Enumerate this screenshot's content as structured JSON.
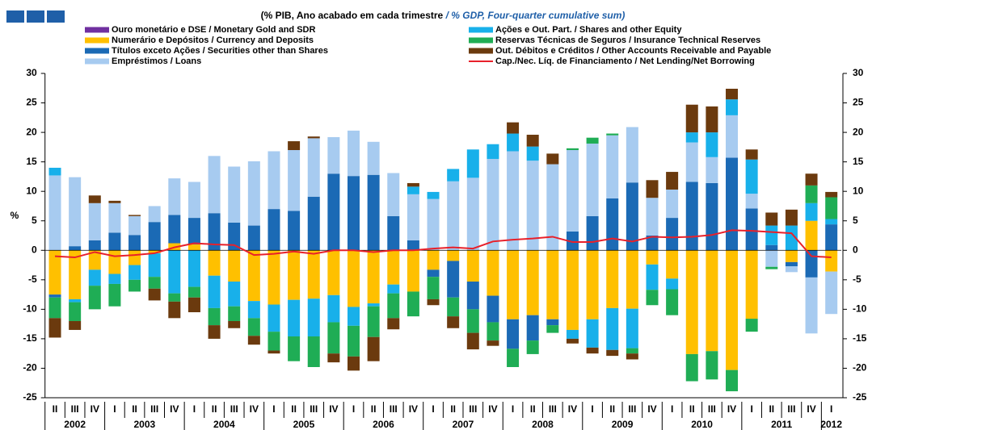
{
  "chart_data": {
    "type": "bar",
    "stacked": true,
    "subtitle_pt": "(% PIB, Ano acabado em cada trimestre ",
    "subtitle_en": "/ % GDP, Four-quarter cumulative sum)",
    "y_label": "%",
    "year_groups": [
      {
        "label": "2002",
        "quarters": [
          "II",
          "III",
          "IV"
        ]
      },
      {
        "label": "2003",
        "quarters": [
          "I",
          "II",
          "III",
          "IV"
        ]
      },
      {
        "label": "2004",
        "quarters": [
          "I",
          "II",
          "III",
          "IV"
        ]
      },
      {
        "label": "2005",
        "quarters": [
          "I",
          "II",
          "III",
          "IV"
        ]
      },
      {
        "label": "2006",
        "quarters": [
          "I",
          "II",
          "III",
          "IV"
        ]
      },
      {
        "label": "2007",
        "quarters": [
          "I",
          "II",
          "III",
          "IV"
        ]
      },
      {
        "label": "2008",
        "quarters": [
          "I",
          "II",
          "III",
          "IV"
        ]
      },
      {
        "label": "2009",
        "quarters": [
          "I",
          "II",
          "III",
          "IV"
        ]
      },
      {
        "label": "2010",
        "quarters": [
          "I",
          "II",
          "III",
          "IV"
        ]
      },
      {
        "label": "2011",
        "quarters": [
          "I",
          "II",
          "III",
          "IV"
        ]
      },
      {
        "label": "2012",
        "quarters": [
          "I"
        ]
      }
    ],
    "ylim": [
      -25,
      30
    ],
    "yticks": [
      -25,
      -20,
      -15,
      -10,
      -5,
      0,
      5,
      10,
      15,
      20,
      25,
      30
    ],
    "right_axis": true,
    "grid": false,
    "series": [
      {
        "name": "Ouro monetário e DSE / Monetary Gold and SDR",
        "color": "#7030a0",
        "type": "bar",
        "values": [
          0,
          0,
          0,
          0,
          0,
          0,
          0,
          0,
          0,
          0,
          0,
          0,
          0,
          0,
          0,
          0,
          0,
          0,
          0,
          0,
          0,
          0,
          0,
          0,
          0,
          0,
          0,
          0,
          0,
          0,
          0,
          0,
          0,
          0,
          0,
          0,
          0,
          0,
          0,
          0
        ]
      },
      {
        "name": "Numerário e Depósitos / Currency and Deposits",
        "color": "#ffc000",
        "type": "bar",
        "values": [
          -7.5,
          -8.3,
          -3.3,
          -4,
          -2.5,
          -0.5,
          1.2,
          1,
          -4.3,
          -5.3,
          -8.6,
          -9.2,
          -8.4,
          -8.2,
          -7.6,
          -9.6,
          -9,
          -5.8,
          -7,
          -3.3,
          -1.8,
          -5.3,
          -7.7,
          -11.7,
          -11,
          -11.7,
          -13.5,
          -11.7,
          -9.8,
          -9.9,
          -2.4,
          -4.8,
          -17.6,
          -17.1,
          -20.3,
          -11.6,
          0,
          -2,
          5,
          -3.6
        ]
      },
      {
        "name": "Títulos exceto Ações / Securities other than Shares",
        "color": "#1b6ab5",
        "type": "bar",
        "values": [
          -0.5,
          0.7,
          1.7,
          3,
          2.6,
          4.8,
          4.8,
          4.5,
          6.3,
          4.7,
          4.2,
          7,
          6.7,
          9.1,
          13,
          12.6,
          12.8,
          5.8,
          1.7,
          -1.2,
          -6.2,
          -4.7,
          -4.5,
          -5,
          -4.3,
          -1,
          3.2,
          5.8,
          8.8,
          11.5,
          2.5,
          5.5,
          11.6,
          11.4,
          15.7,
          7.1,
          0.9,
          -0.7,
          -4.6,
          4.4
        ]
      },
      {
        "name": "Empréstimos / Loans",
        "color": "#a7cbf0",
        "type": "bar",
        "values": [
          12.7,
          11.7,
          6.3,
          5,
          3.2,
          2.7,
          6.2,
          6.1,
          9.7,
          9.5,
          10.9,
          9.8,
          10.3,
          9.9,
          6.2,
          7.7,
          5.6,
          7.3,
          7.8,
          8.7,
          11.7,
          12.3,
          15.5,
          16.8,
          15.2,
          14.6,
          13.8,
          12.3,
          10.7,
          9.4,
          6.4,
          4.8,
          6.7,
          4.4,
          7.2,
          2.5,
          -2.8,
          -1,
          -9.5,
          -7.2
        ]
      },
      {
        "name": "Ações e Out. Part. / Shares and other Equity",
        "color": "#18b0ea",
        "type": "bar",
        "values": [
          1.3,
          -0.5,
          -2.7,
          -1.7,
          -2.5,
          -4,
          -7.3,
          -6.2,
          -5.5,
          -4.2,
          -2.9,
          -4.6,
          -6.2,
          -6.4,
          -4.6,
          -3.2,
          -0.5,
          -1.5,
          1.3,
          1.2,
          2.1,
          4.8,
          2.5,
          3,
          2.4,
          0,
          -1.5,
          -4.8,
          -7.1,
          -6.7,
          -4.3,
          -1.8,
          1.7,
          4.2,
          2.7,
          5.8,
          3.3,
          4.2,
          3,
          0.9
        ]
      },
      {
        "name": "Reservas Técnicas de Seguros / Insurance Technical Reserves",
        "color": "#1fad55",
        "type": "bar",
        "values": [
          -3.5,
          -3.2,
          -4,
          -3.8,
          -2,
          -2,
          -1.4,
          -1.8,
          -2.9,
          -2.5,
          -3,
          -3.2,
          -4.2,
          -5.2,
          -5.3,
          -5.2,
          -5.2,
          -4.2,
          -4.2,
          -3.8,
          -3.2,
          -4,
          -3.1,
          -3.1,
          -2.3,
          -1.3,
          0.3,
          1,
          0.3,
          -0.9,
          -2.6,
          -4.4,
          -4.6,
          -4.8,
          -3.6,
          -2.2,
          -0.4,
          0,
          3,
          3.7
        ]
      },
      {
        "name": "Out. Débitos e Créditos / Other Accounts Receivable and Payable",
        "color": "#6b3a0e",
        "type": "bar",
        "values": [
          -3.3,
          -1.5,
          1.3,
          0.4,
          0.2,
          -2,
          -2.8,
          -2.5,
          -2.3,
          -1.2,
          -1.5,
          -0.5,
          1.5,
          0.3,
          -1.5,
          -2.4,
          -4.1,
          -1.9,
          0.6,
          -1,
          -2,
          -2.8,
          -0.9,
          1.9,
          2,
          1.8,
          -0.8,
          -1,
          -1,
          -1,
          3,
          3,
          4.7,
          4.4,
          1.8,
          1.7,
          2.2,
          2.7,
          2,
          0.9
        ]
      },
      {
        "name": "Cap./Nec. Líq. de Financiamento / Net Lending/Net Borrowing",
        "color": "#e8202a",
        "type": "line",
        "values": [
          -1,
          -1.2,
          -0.3,
          -1,
          -0.8,
          -0.5,
          0.5,
          1.2,
          1,
          0.9,
          -0.8,
          -0.6,
          -0.2,
          -0.6,
          0,
          0,
          -0.3,
          0,
          0,
          0.3,
          0.5,
          0.3,
          1.5,
          1.8,
          2,
          2.3,
          1.4,
          1.4,
          2,
          1.5,
          2.3,
          2.2,
          2.3,
          2.6,
          3.4,
          3.3,
          3.1,
          2.9,
          -1,
          -1.2
        ]
      }
    ]
  }
}
